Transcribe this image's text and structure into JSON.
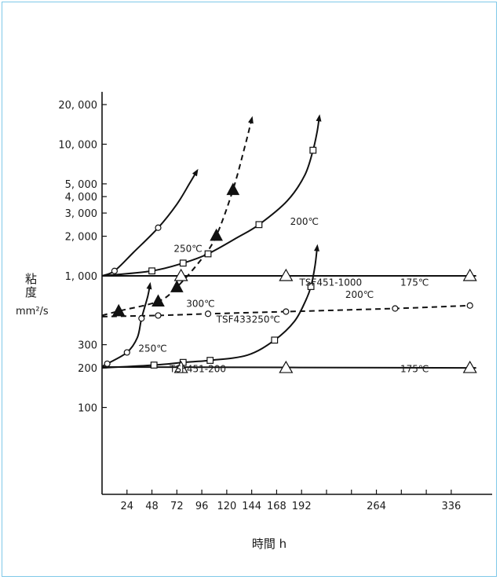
{
  "chart_data": {
    "type": "line",
    "xlabel": "時間 h",
    "ylabel": "粘度",
    "yunit": "mm²/s",
    "yscale": "log",
    "ylim": [
      60,
      25000
    ],
    "xlim": [
      0,
      360
    ],
    "x_ticks": [
      24,
      48,
      72,
      96,
      120,
      144,
      168,
      192,
      264,
      336
    ],
    "x_tick_labels": [
      "24",
      "48",
      "72",
      "96",
      "120",
      "144",
      "168",
      "192",
      "264",
      "336"
    ],
    "x_minor_ticks": [
      216,
      240,
      288,
      312
    ],
    "y_ticks": [
      100,
      200,
      300,
      1000,
      2000,
      3000,
      4000,
      5000,
      10000,
      20000
    ],
    "y_tick_labels": [
      "100",
      "200",
      "300",
      "1, 000",
      "2, 000",
      "3, 000",
      "4, 000",
      "5, 000",
      "10, 000",
      "20, 000"
    ],
    "grid": false,
    "series": [
      {
        "marker": "circle-open",
        "line": "solid",
        "points": [
          [
            12,
            1090
          ],
          [
            54,
            2320
          ]
        ],
        "curve": [
          [
            0,
            1000
          ],
          [
            12,
            1090
          ],
          [
            30,
            1500
          ],
          [
            54,
            2320
          ],
          [
            72,
            3500
          ],
          [
            84,
            5000
          ],
          [
            91,
            6200
          ]
        ],
        "arrow": "up"
      },
      {
        "marker": "square-open",
        "line": "solid",
        "points": [
          [
            48,
            1090
          ],
          [
            78,
            1250
          ],
          [
            102,
            1470
          ],
          [
            151,
            2450
          ],
          [
            203,
            9000
          ]
        ],
        "curve": [
          [
            0,
            1000
          ],
          [
            48,
            1090
          ],
          [
            78,
            1250
          ],
          [
            102,
            1470
          ],
          [
            130,
            1950
          ],
          [
            151,
            2450
          ],
          [
            178,
            3700
          ],
          [
            195,
            5800
          ],
          [
            203,
            9000
          ],
          [
            207,
            12500
          ],
          [
            209,
            16000
          ]
        ],
        "arrow": "up"
      },
      {
        "marker": "triangle-filled",
        "line": "dashed",
        "points": [
          [
            16,
            540
          ],
          [
            54,
            640
          ],
          [
            72,
            820
          ],
          [
            110,
            2020
          ],
          [
            126,
            4500
          ]
        ],
        "curve": [
          [
            0,
            500
          ],
          [
            16,
            540
          ],
          [
            54,
            640
          ],
          [
            72,
            820
          ],
          [
            96,
            1350
          ],
          [
            110,
            2020
          ],
          [
            126,
            4500
          ],
          [
            138,
            10000
          ],
          [
            144,
            15500
          ]
        ],
        "arrow": "up"
      },
      {
        "marker": "circle-open",
        "line": "solid",
        "points": [
          [
            5,
            215
          ],
          [
            24,
            262
          ],
          [
            38,
            475
          ]
        ],
        "curve": [
          [
            0,
            205
          ],
          [
            5,
            215
          ],
          [
            24,
            262
          ],
          [
            34,
            340
          ],
          [
            38,
            475
          ],
          [
            44,
            700
          ],
          [
            46,
            850
          ]
        ],
        "arrow": "up"
      },
      {
        "marker": "circle-open",
        "line": "dashed",
        "points": [
          [
            54,
            500
          ],
          [
            102,
            515
          ],
          [
            177,
            535
          ],
          [
            282,
            565
          ],
          [
            354,
            595
          ]
        ],
        "curve": [
          [
            0,
            490
          ],
          [
            54,
            500
          ],
          [
            102,
            515
          ],
          [
            177,
            535
          ],
          [
            282,
            565
          ],
          [
            354,
            595
          ]
        ],
        "arrow": "none"
      },
      {
        "marker": "square-open",
        "line": "solid",
        "points": [
          [
            50,
            210
          ],
          [
            78,
            220
          ],
          [
            104,
            228
          ],
          [
            166,
            325
          ],
          [
            201,
            830
          ]
        ],
        "curve": [
          [
            0,
            200
          ],
          [
            50,
            210
          ],
          [
            78,
            220
          ],
          [
            104,
            228
          ],
          [
            140,
            250
          ],
          [
            166,
            325
          ],
          [
            185,
            450
          ],
          [
            196,
            650
          ],
          [
            201,
            830
          ],
          [
            205,
            1200
          ],
          [
            207,
            1650
          ]
        ],
        "arrow": "up"
      },
      {
        "marker": "triangle-open",
        "line": "solid",
        "points": [
          [
            76,
            1000
          ],
          [
            177,
            1000
          ],
          [
            354,
            1000
          ]
        ],
        "curve": [
          [
            0,
            1000
          ],
          [
            360,
            1000
          ]
        ],
        "arrow": "none"
      },
      {
        "marker": "triangle-open",
        "line": "solid",
        "points": [
          [
            76,
            200
          ],
          [
            177,
            200
          ],
          [
            354,
            200
          ]
        ],
        "curve": [
          [
            0,
            203
          ],
          [
            360,
            200
          ]
        ],
        "arrow": "none"
      }
    ],
    "annotations": [
      {
        "text": "250℃",
        "x": 69,
        "y": 1520
      },
      {
        "text": "200℃",
        "x": 181,
        "y": 2450
      },
      {
        "text": "TSF451-1000",
        "x": 190,
        "y": 840
      },
      {
        "text": "175℃",
        "x": 287,
        "y": 840
      },
      {
        "text": "200℃",
        "x": 234,
        "y": 680
      },
      {
        "text": "300℃",
        "x": 81,
        "y": 580
      },
      {
        "text": "TSF433",
        "x": 110,
        "y": 440
      },
      {
        "text": "250℃",
        "x": 144,
        "y": 440
      },
      {
        "text": "250℃",
        "x": 35,
        "y": 265
      },
      {
        "text": "TSF451-200",
        "x": 65,
        "y": 185
      },
      {
        "text": "175℃",
        "x": 287,
        "y": 185
      }
    ]
  }
}
